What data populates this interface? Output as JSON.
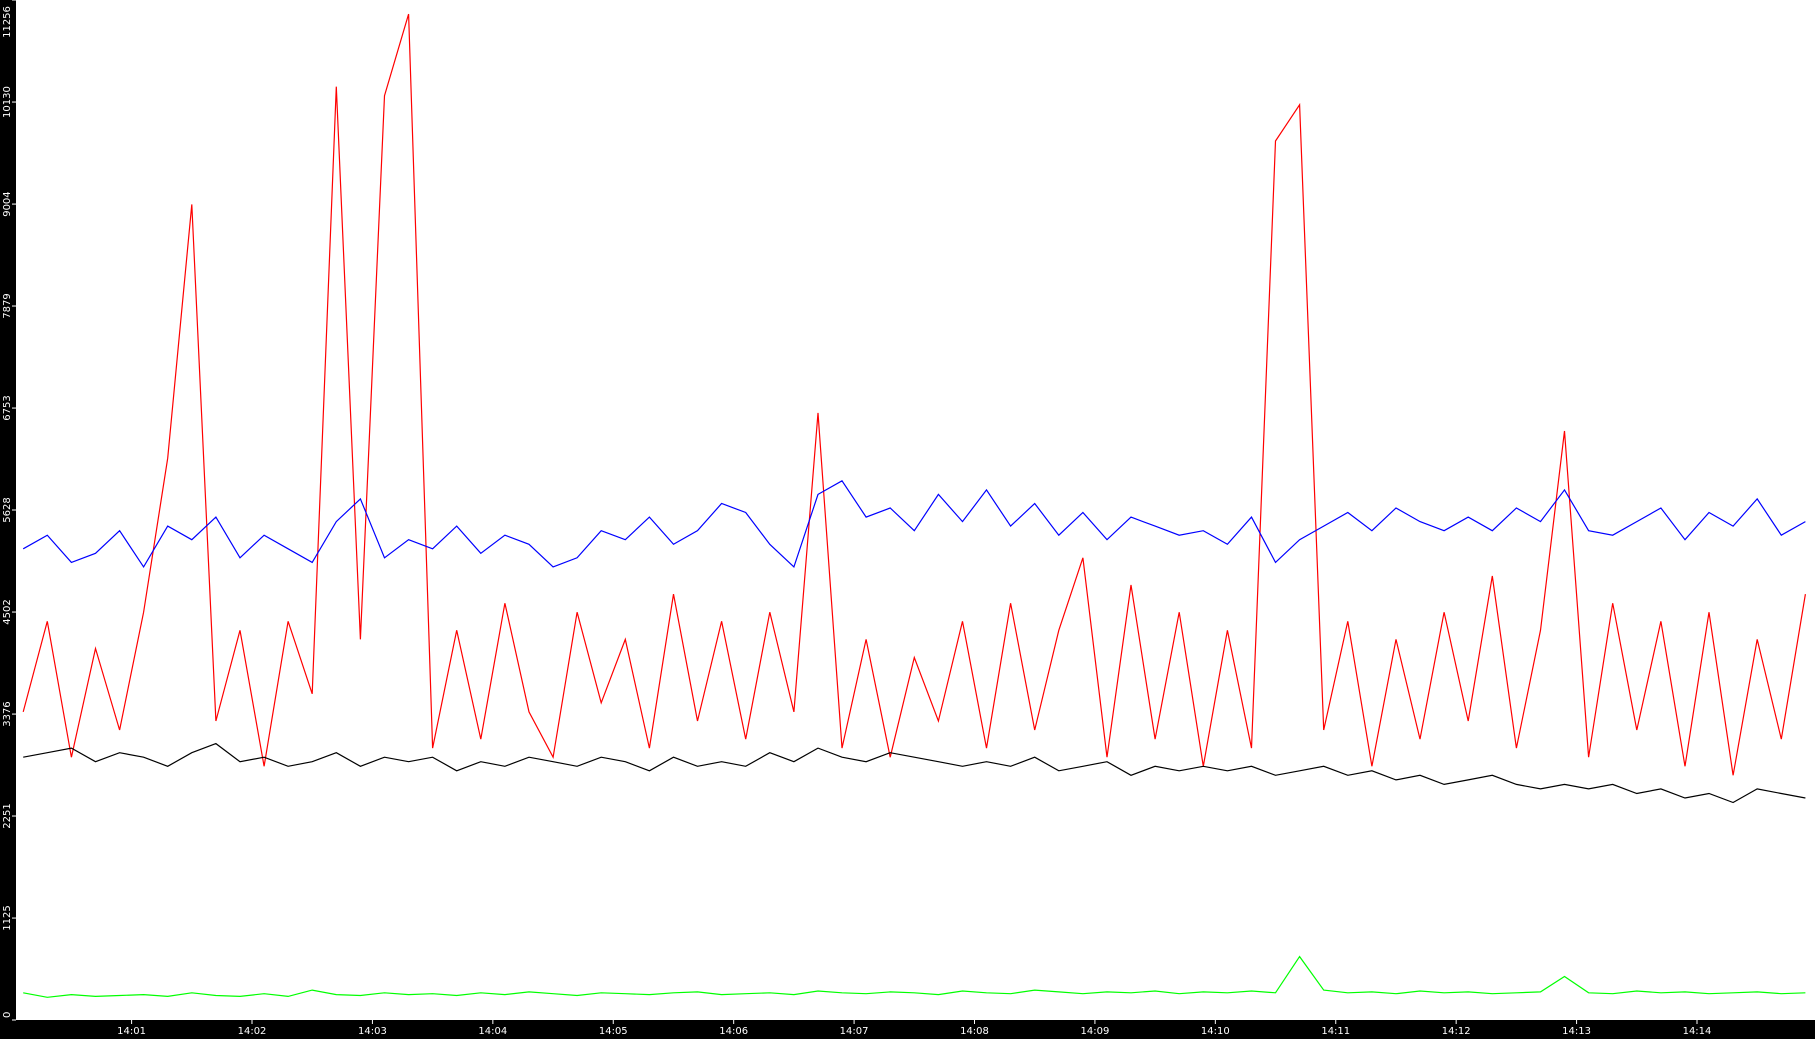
{
  "chart_data": {
    "type": "line",
    "x": [
      0.1,
      0.3,
      0.5,
      0.7,
      0.9,
      1.1,
      1.3,
      1.5,
      1.7,
      1.9,
      2.1,
      2.3,
      2.5,
      2.7,
      2.9,
      3.1,
      3.3,
      3.5,
      3.7,
      3.9,
      4.1,
      4.3,
      4.5,
      4.7,
      4.9,
      5.1,
      5.3,
      5.5,
      5.7,
      5.9,
      6.1,
      6.3,
      6.5,
      6.7,
      6.9,
      7.1,
      7.3,
      7.5,
      7.7,
      7.9,
      8.1,
      8.3,
      8.5,
      8.7,
      8.9,
      9.1,
      9.3,
      9.5,
      9.7,
      9.9,
      10.1,
      10.3,
      10.5,
      10.7,
      10.9,
      11.1,
      11.3,
      11.5,
      11.7,
      11.9,
      12.1,
      12.3,
      12.5,
      12.7,
      12.9,
      13.1,
      13.3,
      13.5,
      13.7,
      13.9,
      14.1,
      14.3,
      14.5,
      14.7,
      14.9
    ],
    "series": [
      {
        "color": "#ff0000",
        "values": [
          3400,
          4400,
          2900,
          4100,
          3200,
          4500,
          6200,
          9000,
          3300,
          4300,
          2800,
          4400,
          3600,
          10300,
          4200,
          10200,
          11100,
          3000,
          4300,
          3100,
          4600,
          3400,
          2900,
          4500,
          3500,
          4200,
          3000,
          4700,
          3300,
          4400,
          3100,
          4500,
          3400,
          6700,
          3000,
          4200,
          2900,
          4000,
          3300,
          4400,
          3000,
          4600,
          3200,
          4300,
          5100,
          2900,
          4800,
          3100,
          4500,
          2800,
          4300,
          3000,
          9700,
          10100,
          3200,
          4400,
          2800,
          4200,
          3100,
          4500,
          3300,
          4900,
          3000,
          4300,
          6500,
          2900,
          4600,
          3200,
          4400,
          2800,
          4500,
          2700,
          4200,
          3100,
          4700
        ]
      },
      {
        "color": "#0000ff",
        "values": [
          5200,
          5350,
          5050,
          5150,
          5400,
          5000,
          5450,
          5300,
          5550,
          5100,
          5350,
          5200,
          5050,
          5500,
          5750,
          5100,
          5300,
          5200,
          5450,
          5150,
          5350,
          5250,
          5000,
          5100,
          5400,
          5300,
          5550,
          5250,
          5400,
          5700,
          5600,
          5250,
          5000,
          5800,
          5950,
          5550,
          5650,
          5400,
          5800,
          5500,
          5850,
          5450,
          5700,
          5350,
          5600,
          5300,
          5550,
          5450,
          5350,
          5400,
          5250,
          5550,
          5050,
          5300,
          5450,
          5600,
          5400,
          5650,
          5500,
          5400,
          5550,
          5400,
          5650,
          5500,
          5850,
          5400,
          5350,
          5500,
          5650,
          5300,
          5600,
          5450,
          5750,
          5350,
          5500
        ]
      },
      {
        "color": "#000000",
        "values": [
          2900,
          2950,
          3000,
          2850,
          2950,
          2900,
          2800,
          2950,
          3050,
          2850,
          2900,
          2800,
          2850,
          2950,
          2800,
          2900,
          2850,
          2900,
          2750,
          2850,
          2800,
          2900,
          2850,
          2800,
          2900,
          2850,
          2750,
          2900,
          2800,
          2850,
          2800,
          2950,
          2850,
          3000,
          2900,
          2850,
          2950,
          2900,
          2850,
          2800,
          2850,
          2800,
          2900,
          2750,
          2800,
          2850,
          2700,
          2800,
          2750,
          2800,
          2750,
          2800,
          2700,
          2750,
          2800,
          2700,
          2750,
          2650,
          2700,
          2600,
          2650,
          2700,
          2600,
          2550,
          2600,
          2550,
          2600,
          2500,
          2550,
          2450,
          2500,
          2400,
          2550,
          2500,
          2450
        ]
      },
      {
        "color": "#00ff00",
        "values": [
          300,
          250,
          280,
          260,
          270,
          280,
          260,
          300,
          270,
          260,
          290,
          260,
          330,
          280,
          270,
          300,
          280,
          290,
          270,
          300,
          280,
          310,
          290,
          270,
          300,
          290,
          280,
          300,
          310,
          280,
          290,
          300,
          280,
          320,
          300,
          290,
          310,
          300,
          280,
          320,
          300,
          290,
          330,
          310,
          290,
          310,
          300,
          320,
          290,
          310,
          300,
          320,
          300,
          700,
          330,
          300,
          310,
          290,
          320,
          300,
          310,
          290,
          300,
          310,
          480,
          300,
          290,
          320,
          300,
          310,
          290,
          300,
          310,
          290,
          300
        ]
      }
    ],
    "xlim": [
      0.04,
      14.98
    ],
    "xticks": [
      {
        "value": 1,
        "label": "14:01"
      },
      {
        "value": 2,
        "label": "14:02"
      },
      {
        "value": 3,
        "label": "14:03"
      },
      {
        "value": 4,
        "label": "14:04"
      },
      {
        "value": 5,
        "label": "14:05"
      },
      {
        "value": 6,
        "label": "14:06"
      },
      {
        "value": 7,
        "label": "14:07"
      },
      {
        "value": 8,
        "label": "14:08"
      },
      {
        "value": 9,
        "label": "14:09"
      },
      {
        "value": 10,
        "label": "14:10"
      },
      {
        "value": 11,
        "label": "14:11"
      },
      {
        "value": 12,
        "label": "14:12"
      },
      {
        "value": 13,
        "label": "14:13"
      },
      {
        "value": 14,
        "label": "14:14"
      }
    ],
    "ylim": [
      0,
      11256
    ],
    "yticks": [
      0,
      1125,
      2251,
      3376,
      4502,
      5628,
      6753,
      7879,
      9004,
      10130,
      11256
    ]
  }
}
